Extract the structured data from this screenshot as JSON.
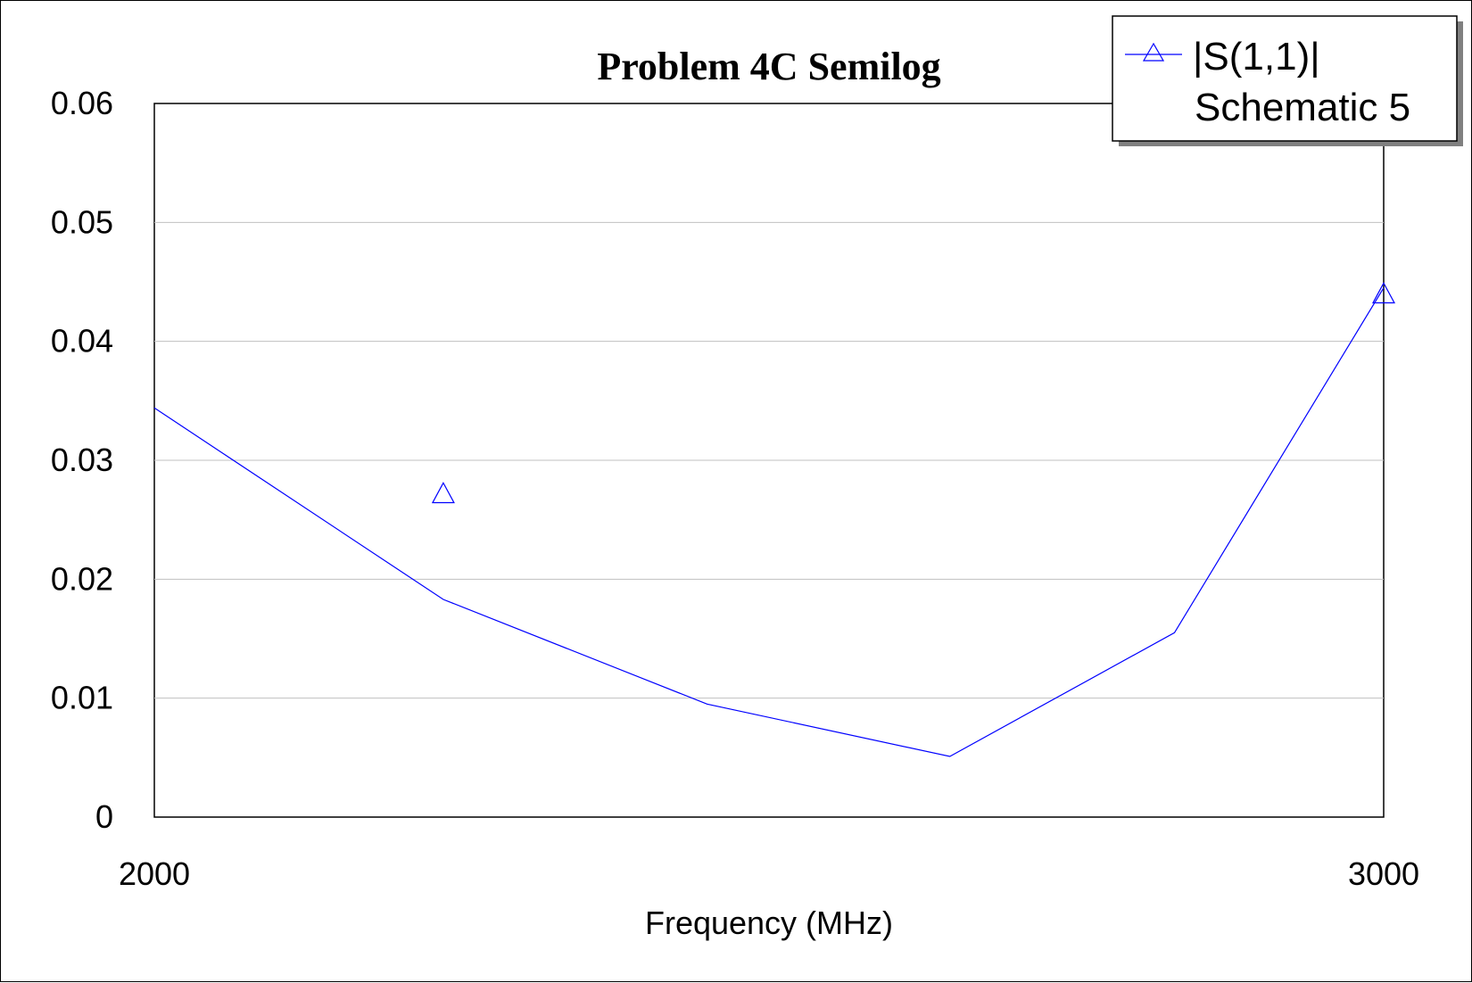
{
  "chart_data": {
    "type": "line",
    "title": "Problem 4C Semilog",
    "xlabel": "Frequency (MHz)",
    "ylabel": "",
    "x_scale": "log",
    "xlim": [
      2000,
      3000
    ],
    "ylim": [
      0,
      0.06
    ],
    "x_tick_labels": [
      "2000",
      "3000"
    ],
    "x_tick_values": [
      2000,
      3000
    ],
    "y_tick_labels": [
      "0",
      "0.01",
      "0.02",
      "0.03",
      "0.04",
      "0.05",
      "0.06"
    ],
    "y_tick_values": [
      0,
      0.01,
      0.02,
      0.03,
      0.04,
      0.05,
      0.06
    ],
    "grid": {
      "horizontal": true,
      "vertical": false
    },
    "legend_position": "top-right",
    "series": [
      {
        "name": "|S(1,1)| Schematic 5",
        "name_lines": [
          "|S(1,1)|",
          "Schematic 5"
        ],
        "color": "#0000ff",
        "marker": "triangle",
        "x": [
          2000,
          2200,
          2400,
          2600,
          2800,
          3000
        ],
        "y": [
          0.0344,
          0.0183,
          0.0095,
          0.0051,
          0.0155,
          0.0445
        ],
        "marker_x": [
          2200,
          3000
        ],
        "marker_y": [
          0.0272,
          0.044
        ]
      }
    ]
  }
}
